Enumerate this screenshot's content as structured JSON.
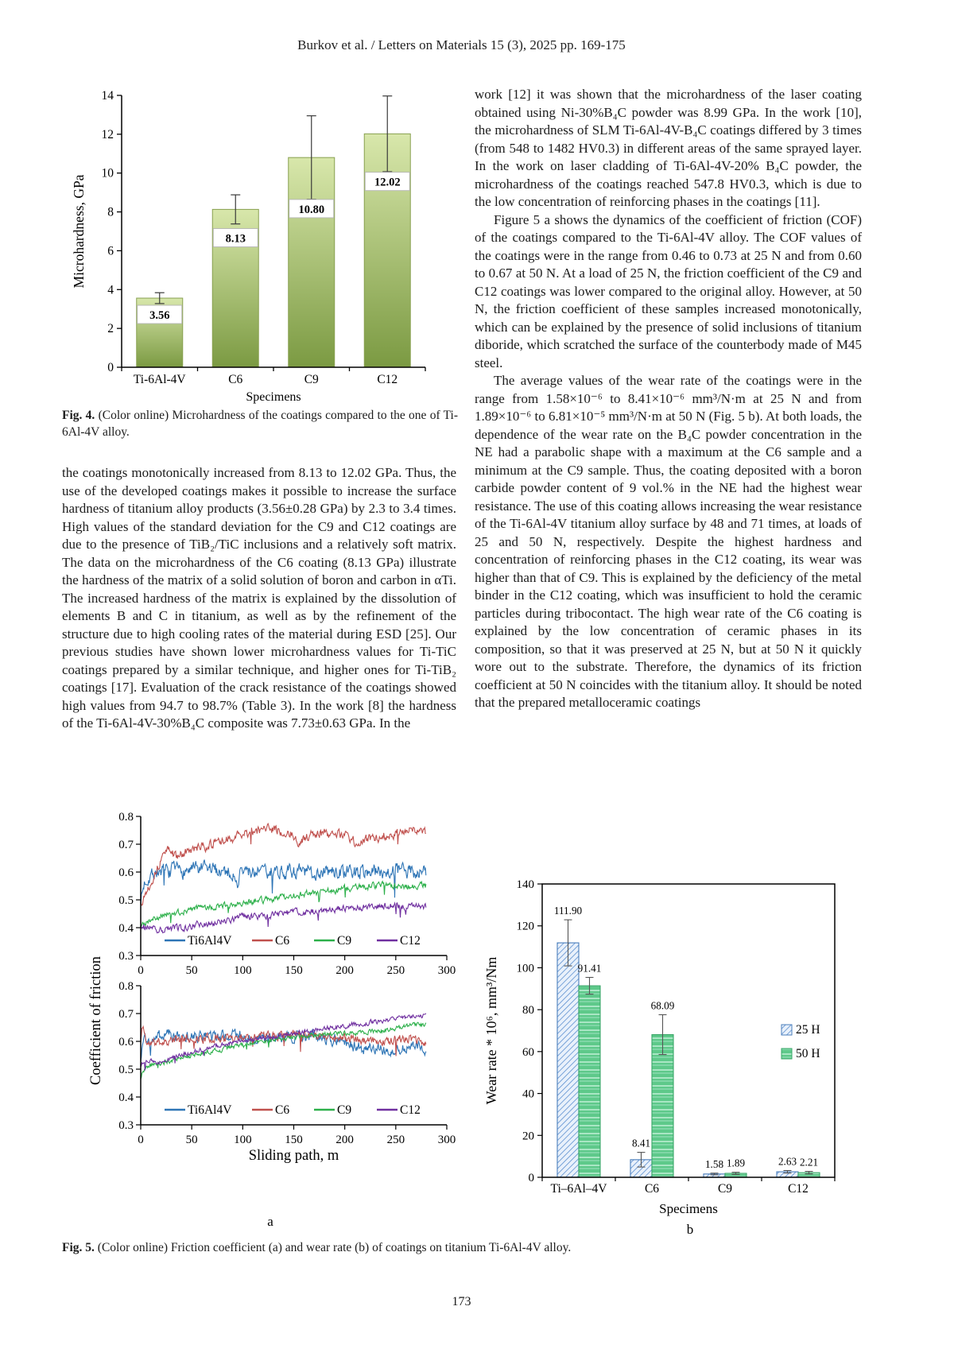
{
  "page": {
    "header": "Burkov et al. / Letters on Materials 15 (3), 2025 pp. 169-175",
    "page_number": "173"
  },
  "fig4_caption": {
    "label": "Fig. 4.",
    "text": " (Color online) Microhardness of the coatings compared to the one of Ti-6Al-4V alloy."
  },
  "fig5_caption": {
    "label": "Fig. 5.",
    "text": " (Color online) Friction coefficient (a) and wear rate (b) of coatings on titanium Ti-6Al-4V alloy."
  },
  "columns": {
    "left_p1": "the coatings monotonically increased from 8.13 to 12.02 GPa. Thus, the use of the developed coatings makes it possible to increase the surface hardness of titanium alloy products (3.56±0.28 GPa) by 2.3 to 3.4 times. High values of the standard deviation for the C9 and C12 coatings are due to the presence of TiB₂/TiC inclusions and a relatively soft matrix. The data on the microhardness of the C6 coating (8.13 GPa) illustrate the hardness of the matrix of a solid solution of boron and carbon in αTi. The increased hardness of the matrix is explained by the dissolution of elements B and C in titanium, as well as by the refinement of the structure due to high cooling rates of the material during ESD [25]. Our previous studies have shown lower microhardness values for Ti-TiC coatings prepared by a similar technique, and higher ones for Ti-TiB₂ coatings [17]. Evaluation of the crack resistance of the coatings showed high values from 94.7 to 98.7% (Table 3). In the work [8] the hardness of the Ti-6Al-4V-30%B₄C composite was 7.73±0.63 GPa. In the",
    "right_p1": "work [12] it was shown that the microhardness of the laser coating obtained using Ni-30%B₄C powder was 8.99 GPa. In the work [10], the microhardness of SLM Ti-6Al-4V-B₄C coatings differed by 3 times (from 548 to 1482 HV0.3) in different areas of the same sprayed layer. In the work on laser cladding of Ti-6Al-4V-20% B₄C powder, the microhardness of the coatings reached 547.8 HV0.3, which is due to the low concentration of reinforcing phases in the coatings [11].",
    "right_p2": "Figure 5 a shows the dynamics of the coefficient of friction (COF) of the coatings compared to the Ti-6Al-4V alloy. The COF values of the coatings were in the range from 0.46 to 0.73 at 25 N and from 0.60 to 0.67 at 50 N. At a load of 25 N, the friction coefficient of the C9 and C12 coatings was lower compared to the original alloy. However, at 50 N, the friction coefficient of these samples increased monotonically, which can be explained by the presence of solid inclusions of titanium diboride, which scratched the surface of the counterbody made of M45 steel.",
    "right_p3": "The average values of the wear rate of the coatings were in the range from 1.58×10⁻⁶ to 8.41×10⁻⁶ mm³/N·m at 25 N and from 1.89×10⁻⁶ to 6.81×10⁻⁵ mm³/N·m at 50 N (Fig. 5 b). At both loads, the dependence of the wear rate on the B₄C powder concentration in the NE had a parabolic shape with a maximum at the C6 sample and a minimum at the C9 sample. Thus, the coating deposited with a boron carbide powder content of 9 vol.% in the NE had the highest wear resistance. The use of this coating allows increasing the wear resistance of the Ti-6Al-4V titanium alloy surface by 48 and 71 times, at loads of 25 and 50 N, respectively. Despite the highest hardness and concentration of reinforcing phases in the C12 coating, its wear was higher than that of C9. This is explained by the deficiency of the metal binder in the C12 coating, which was insufficient to hold the ceramic particles during tribocontact. The high wear rate of the C6 coating is explained by the low concentration of ceramic phases in its composition, so that it was preserved at 25 N, but at 50 N it quickly wore out to the substrate. Therefore, the dynamics of its friction coefficient at 50 N coincides with the titanium alloy. It should be noted that the prepared metalloceramic coatings",
    "panel_a_label": "a",
    "panel_b_label": "b"
  },
  "chart_data": [
    {
      "id": "fig4",
      "type": "bar",
      "title": "",
      "xlabel": "Specimens",
      "ylabel": "Microhardness, GPa",
      "ylim": [
        0,
        14
      ],
      "yticks": [
        0,
        2,
        4,
        6,
        8,
        10,
        12,
        14
      ],
      "grid": false,
      "categories": [
        "Ti-6Al-4V",
        "C6",
        "C9",
        "C12"
      ],
      "values": [
        3.56,
        8.13,
        10.8,
        12.02
      ],
      "errors": [
        0.28,
        0.75,
        2.15,
        1.95
      ],
      "value_labels": [
        "3.56",
        "8.13",
        "10.80",
        "12.02"
      ],
      "label_y": [
        2.7,
        6.65,
        8.15,
        9.55
      ],
      "colors": {
        "bar_top": "#d8e7ab",
        "bar_bottom": "#7b9a42",
        "bar_border": "#88a050",
        "error": "#3a3a3a"
      }
    },
    {
      "id": "fig5a",
      "type": "line",
      "ylabel": "Coefficient of friction",
      "xlabel": "Sliding path, m",
      "legend": [
        "Ti6Al4V",
        "C6",
        "C9",
        "C12"
      ],
      "legend_position": "inside-bottom",
      "grid": false,
      "panels": [
        {
          "load": "25 N",
          "xlim": [
            0,
            300
          ],
          "ylim": [
            0.3,
            0.8
          ],
          "xticks": [
            0,
            50,
            100,
            150,
            200,
            250,
            300
          ],
          "yticks": [
            0.3,
            0.4,
            0.5,
            0.6,
            0.7,
            0.8
          ],
          "series": [
            {
              "name": "Ti6Al4V",
              "color": "#2e75b6",
              "seed": 7,
              "noise": 0.022,
              "anchors": [
                [
                  0,
                  0.5
                ],
                [
                  4,
                  0.565
                ],
                [
                  12,
                  0.6
                ],
                [
                  40,
                  0.605
                ],
                [
                  70,
                  0.61
                ],
                [
                  90,
                  0.6
                ],
                [
                  94,
                  0.545
                ],
                [
                  98,
                  0.6
                ],
                [
                  130,
                  0.605
                ],
                [
                  160,
                  0.6
                ],
                [
                  200,
                  0.6
                ],
                [
                  240,
                  0.605
                ],
                [
                  280,
                  0.6
                ]
              ]
            },
            {
              "name": "C6",
              "color": "#c0504d",
              "seed": 13,
              "noise": 0.014,
              "anchors": [
                [
                  0,
                  0.49
                ],
                [
                  8,
                  0.55
                ],
                [
                  25,
                  0.685
                ],
                [
                  35,
                  0.655
                ],
                [
                  55,
                  0.685
                ],
                [
                  80,
                  0.71
                ],
                [
                  100,
                  0.735
                ],
                [
                  125,
                  0.755
                ],
                [
                  148,
                  0.74
                ],
                [
                  153,
                  0.705
                ],
                [
                  170,
                  0.74
                ],
                [
                  200,
                  0.735
                ],
                [
                  212,
                  0.7
                ],
                [
                  225,
                  0.72
                ],
                [
                  250,
                  0.74
                ],
                [
                  268,
                  0.755
                ],
                [
                  280,
                  0.735
                ]
              ]
            },
            {
              "name": "C9",
              "color": "#2cb04a",
              "seed": 21,
              "noise": 0.01,
              "anchors": [
                [
                  0,
                  0.41
                ],
                [
                  20,
                  0.445
                ],
                [
                  50,
                  0.465
                ],
                [
                  100,
                  0.49
                ],
                [
                  150,
                  0.515
                ],
                [
                  200,
                  0.54
                ],
                [
                  235,
                  0.555
                ],
                [
                  250,
                  0.545
                ],
                [
                  280,
                  0.55
                ]
              ]
            },
            {
              "name": "C12",
              "color": "#7030a0",
              "seed": 34,
              "noise": 0.01,
              "anchors": [
                [
                  0,
                  0.41
                ],
                [
                  12,
                  0.395
                ],
                [
                  22,
                  0.39
                ],
                [
                  40,
                  0.4
                ],
                [
                  60,
                  0.415
                ],
                [
                  80,
                  0.42
                ],
                [
                  100,
                  0.44
                ],
                [
                  125,
                  0.44
                ],
                [
                  150,
                  0.455
                ],
                [
                  175,
                  0.462
                ],
                [
                  200,
                  0.47
                ],
                [
                  225,
                  0.475
                ],
                [
                  250,
                  0.48
                ],
                [
                  265,
                  0.472
                ],
                [
                  280,
                  0.476
                ]
              ]
            }
          ]
        },
        {
          "load": "50 N",
          "xlim": [
            0,
            300
          ],
          "ylim": [
            0.3,
            0.8
          ],
          "xticks": [
            0,
            50,
            100,
            150,
            200,
            250,
            300
          ],
          "yticks": [
            0.3,
            0.4,
            0.5,
            0.6,
            0.7,
            0.8
          ],
          "series": [
            {
              "name": "Ti6Al4V",
              "color": "#2e75b6",
              "seed": 3,
              "noise": 0.018,
              "anchors": [
                [
                  0,
                  0.52
                ],
                [
                  3,
                  0.625
                ],
                [
                  8,
                  0.585
                ],
                [
                  20,
                  0.62
                ],
                [
                  45,
                  0.62
                ],
                [
                  70,
                  0.615
                ],
                [
                  100,
                  0.62
                ],
                [
                  130,
                  0.61
                ],
                [
                  160,
                  0.62
                ],
                [
                  180,
                  0.615
                ],
                [
                  195,
                  0.6
                ],
                [
                  215,
                  0.575
                ],
                [
                  235,
                  0.57
                ],
                [
                  255,
                  0.575
                ],
                [
                  270,
                  0.58
                ],
                [
                  280,
                  0.56
                ]
              ]
            },
            {
              "name": "C6",
              "color": "#c0504d",
              "seed": 11,
              "noise": 0.013,
              "anchors": [
                [
                  0,
                  0.6
                ],
                [
                  2,
                  0.66
                ],
                [
                  6,
                  0.59
                ],
                [
                  20,
                  0.6
                ],
                [
                  50,
                  0.61
                ],
                [
                  80,
                  0.612
                ],
                [
                  110,
                  0.62
                ],
                [
                  140,
                  0.622
                ],
                [
                  160,
                  0.628
                ],
                [
                  180,
                  0.62
                ],
                [
                  200,
                  0.612
                ],
                [
                  220,
                  0.6
                ],
                [
                  240,
                  0.6
                ],
                [
                  260,
                  0.612
                ],
                [
                  280,
                  0.59
                ]
              ]
            },
            {
              "name": "C9",
              "color": "#2cb04a",
              "seed": 19,
              "noise": 0.007,
              "anchors": [
                [
                  0,
                  0.47
                ],
                [
                  5,
                  0.51
                ],
                [
                  15,
                  0.52
                ],
                [
                  30,
                  0.53
                ],
                [
                  50,
                  0.55
                ],
                [
                  80,
                  0.572
                ],
                [
                  110,
                  0.592
                ],
                [
                  140,
                  0.61
                ],
                [
                  160,
                  0.62
                ],
                [
                  180,
                  0.625
                ],
                [
                  200,
                  0.63
                ],
                [
                  220,
                  0.632
                ],
                [
                  240,
                  0.64
                ],
                [
                  260,
                  0.655
                ],
                [
                  280,
                  0.662
                ]
              ]
            },
            {
              "name": "C12",
              "color": "#7030a0",
              "seed": 27,
              "noise": 0.007,
              "anchors": [
                [
                  0,
                  0.52
                ],
                [
                  8,
                  0.532
                ],
                [
                  16,
                  0.525
                ],
                [
                  30,
                  0.54
                ],
                [
                  50,
                  0.56
                ],
                [
                  70,
                  0.58
                ],
                [
                  90,
                  0.596
                ],
                [
                  110,
                  0.61
                ],
                [
                  130,
                  0.616
                ],
                [
                  150,
                  0.626
                ],
                [
                  170,
                  0.64
                ],
                [
                  190,
                  0.65
                ],
                [
                  210,
                  0.66
                ],
                [
                  230,
                  0.67
                ],
                [
                  250,
                  0.68
                ],
                [
                  270,
                  0.69
                ],
                [
                  280,
                  0.69
                ]
              ]
            }
          ]
        }
      ]
    },
    {
      "id": "fig5b",
      "type": "bar",
      "grouped": true,
      "xlabel": "Specimens",
      "ylabel": "Wear rate * 10⁶, mm³/Nm",
      "ylim": [
        0,
        140
      ],
      "yticks": [
        0,
        20,
        40,
        60,
        80,
        100,
        120,
        140
      ],
      "grid": false,
      "categories": [
        "Ti–6Al–4V",
        "C6",
        "C9",
        "C12"
      ],
      "series": [
        {
          "name": "25 H",
          "pattern": "hatch-blue",
          "values": [
            111.9,
            8.41,
            1.58,
            2.63
          ],
          "errors": [
            11.0,
            3.5,
            0.4,
            0.6
          ],
          "value_labels": [
            "111.90",
            "8.41",
            "1.58",
            "2.63"
          ],
          "colors": {
            "fill": "#e9f1fb",
            "stripe": "#5b8fd0",
            "border": "#4a7ebb"
          }
        },
        {
          "name": "50 H",
          "pattern": "stripe-green",
          "values": [
            91.41,
            68.09,
            1.89,
            2.21
          ],
          "errors": [
            4.0,
            9.5,
            0.5,
            0.6
          ],
          "value_labels": [
            "91.41",
            "68.09",
            "1.89",
            "2.21"
          ],
          "colors": {
            "fill": "#5ec98a",
            "stripe": "#a9e6c4",
            "border": "#3aa768"
          }
        }
      ],
      "legend": [
        "25 H",
        "50 H"
      ],
      "legend_position": "inside-right"
    }
  ]
}
